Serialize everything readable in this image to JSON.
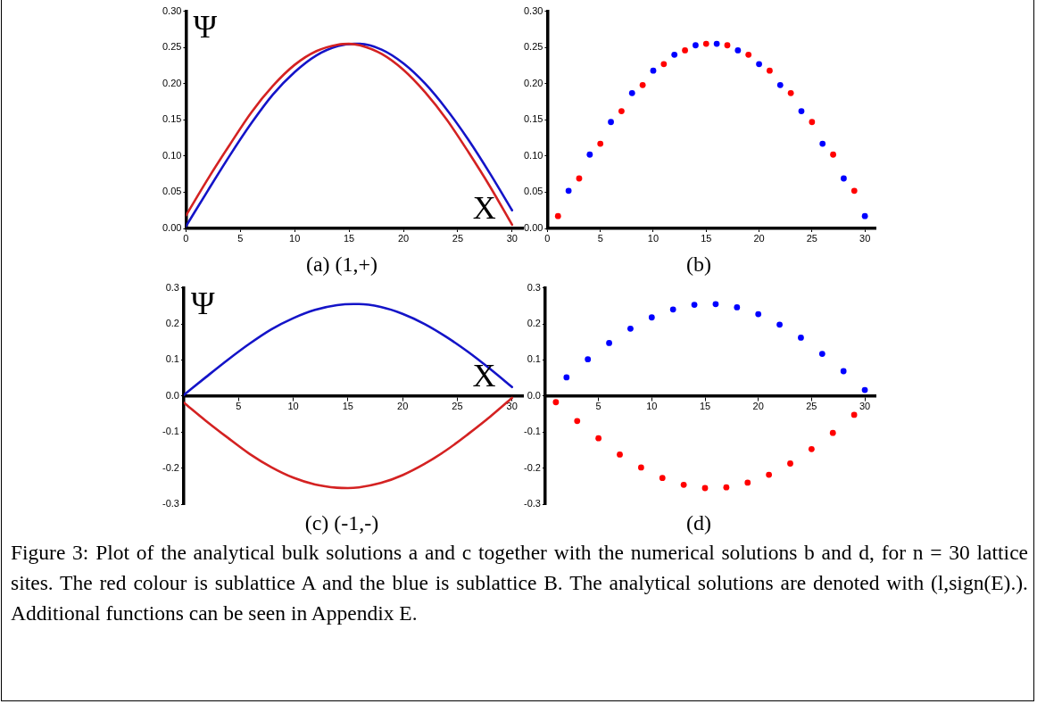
{
  "chart_data": [
    {
      "type": "line",
      "title": "(a) (1,+)",
      "xlabel": "X",
      "ylabel": "Ψ",
      "marker": "none",
      "line_style": "solid",
      "grid": false,
      "legend": false,
      "xlim": [
        0,
        31
      ],
      "xticks": [
        0,
        5,
        10,
        15,
        20,
        25,
        30
      ],
      "ylim": [
        0,
        0.3
      ],
      "yticks": [
        {
          "value": 0,
          "label": "0.00"
        },
        {
          "value": 0.05,
          "label": "0.05"
        },
        {
          "value": 0.1,
          "label": "0.10"
        },
        {
          "value": 0.15,
          "label": "0.15"
        },
        {
          "value": 0.2,
          "label": "0.20"
        },
        {
          "value": 0.25,
          "label": "0.25"
        },
        {
          "value": 0.3,
          "label": "0.30"
        }
      ],
      "series": [
        {
          "color": "#d42222",
          "x": [
            0,
            2,
            4,
            6,
            8,
            10,
            12,
            14,
            15,
            16,
            18,
            20,
            22,
            24,
            26,
            28,
            30
          ],
          "values": [
            0.018,
            0.068,
            0.115,
            0.16,
            0.197,
            0.226,
            0.245,
            0.254,
            0.255,
            0.253,
            0.241,
            0.219,
            0.188,
            0.15,
            0.105,
            0.057,
            0.005
          ]
        },
        {
          "color": "#1414c8",
          "x": [
            0,
            2,
            4,
            6,
            8,
            10,
            12,
            14,
            15.5,
            16,
            18,
            20,
            22,
            24,
            26,
            28,
            30
          ],
          "values": [
            0.003,
            0.052,
            0.1,
            0.145,
            0.185,
            0.216,
            0.239,
            0.252,
            0.255,
            0.255,
            0.247,
            0.228,
            0.2,
            0.164,
            0.122,
            0.075,
            0.025
          ]
        }
      ]
    },
    {
      "type": "scatter",
      "title": "(b)",
      "marker": "circle",
      "grid": false,
      "legend": false,
      "xlim": [
        0,
        31
      ],
      "xticks": [
        0,
        5,
        10,
        15,
        20,
        25,
        30
      ],
      "ylim": [
        0,
        0.3
      ],
      "yticks": [
        {
          "value": 0,
          "label": "0.00"
        },
        {
          "value": 0.05,
          "label": "0.05"
        },
        {
          "value": 0.1,
          "label": "0.10"
        },
        {
          "value": 0.15,
          "label": "0.15"
        },
        {
          "value": 0.2,
          "label": "0.20"
        },
        {
          "value": 0.25,
          "label": "0.25"
        },
        {
          "value": 0.3,
          "label": "0.30"
        }
      ],
      "series": [
        {
          "color": "#ff0000",
          "x": [
            1,
            3,
            5,
            7,
            9,
            11,
            13,
            15,
            17,
            19,
            21,
            23,
            25,
            27,
            29
          ],
          "values": [
            0.017,
            0.069,
            0.117,
            0.162,
            0.198,
            0.227,
            0.246,
            0.255,
            0.253,
            0.24,
            0.218,
            0.187,
            0.147,
            0.102,
            0.052
          ]
        },
        {
          "color": "#0000ff",
          "x": [
            2,
            4,
            6,
            8,
            10,
            12,
            14,
            16,
            18,
            20,
            22,
            24,
            26,
            28,
            30
          ],
          "values": [
            0.052,
            0.102,
            0.147,
            0.187,
            0.218,
            0.24,
            0.253,
            0.255,
            0.246,
            0.227,
            0.198,
            0.162,
            0.117,
            0.069,
            0.017
          ]
        }
      ]
    },
    {
      "type": "line",
      "title": "(c) (-1,-)",
      "xlabel": "X",
      "ylabel": "Ψ",
      "marker": "none",
      "line_style": "solid",
      "grid": false,
      "legend": false,
      "xlim": [
        0,
        31
      ],
      "xticks": [
        5,
        10,
        15,
        20,
        25,
        30
      ],
      "ylim": [
        -0.3,
        0.3
      ],
      "yticks": [
        {
          "value": -0.3,
          "label": "-0.3"
        },
        {
          "value": -0.2,
          "label": "-0.2"
        },
        {
          "value": -0.1,
          "label": "-0.1"
        },
        {
          "value": 0,
          "label": "0.0"
        },
        0.1,
        0.2,
        0.3
      ],
      "series": [
        {
          "color": "#1414c8",
          "x": [
            0,
            2,
            4,
            6,
            8,
            10,
            12,
            14,
            15.5,
            16,
            18,
            20,
            22,
            24,
            26,
            28,
            30
          ],
          "values": [
            0.003,
            0.052,
            0.1,
            0.145,
            0.185,
            0.216,
            0.239,
            0.252,
            0.255,
            0.255,
            0.247,
            0.228,
            0.2,
            0.164,
            0.122,
            0.075,
            0.025
          ]
        },
        {
          "color": "#d42222",
          "x": [
            0,
            2,
            4,
            6,
            8,
            10,
            12,
            14,
            15,
            16,
            18,
            20,
            22,
            24,
            26,
            28,
            30
          ],
          "values": [
            -0.018,
            -0.068,
            -0.115,
            -0.16,
            -0.197,
            -0.226,
            -0.245,
            -0.254,
            -0.255,
            -0.253,
            -0.241,
            -0.219,
            -0.188,
            -0.15,
            -0.105,
            -0.057,
            -0.005
          ]
        }
      ]
    },
    {
      "type": "scatter",
      "title": "(d)",
      "marker": "circle",
      "grid": false,
      "legend": false,
      "xlim": [
        0,
        31
      ],
      "xticks": [
        5,
        10,
        15,
        20,
        25,
        30
      ],
      "ylim": [
        -0.3,
        0.3
      ],
      "yticks": [
        {
          "value": -0.3,
          "label": "-0.3"
        },
        {
          "value": -0.2,
          "label": "-0.2"
        },
        {
          "value": -0.1,
          "label": "-0.1"
        },
        {
          "value": 0,
          "label": "0.0"
        },
        0.1,
        0.2,
        0.3
      ],
      "annotations": [
        "Figure 3: Plot of the analytical bulk solutions a and c together with the numerical solutions b and d, for n = 30 lattice sites. The red colour is sublattice A and the blue is sublattice B. The analytical solutions are denoted with (l,sign(E).). Additional functions can be seen in Appendix E."
      ],
      "series": [
        {
          "color": "#0000ff",
          "x": [
            2,
            4,
            6,
            8,
            10,
            12,
            14,
            16,
            18,
            20,
            22,
            24,
            26,
            28,
            30
          ],
          "values": [
            0.052,
            0.102,
            0.147,
            0.187,
            0.218,
            0.24,
            0.253,
            0.255,
            0.246,
            0.227,
            0.198,
            0.162,
            0.117,
            0.069,
            0.017
          ]
        },
        {
          "color": "#ff0000",
          "x": [
            1,
            3,
            5,
            7,
            9,
            11,
            13,
            15,
            17,
            19,
            21,
            23,
            25,
            27,
            29
          ],
          "values": [
            -0.017,
            -0.069,
            -0.117,
            -0.162,
            -0.198,
            -0.227,
            -0.246,
            -0.255,
            -0.253,
            -0.24,
            -0.218,
            -0.187,
            -0.147,
            -0.102,
            -0.052
          ]
        }
      ]
    }
  ]
}
